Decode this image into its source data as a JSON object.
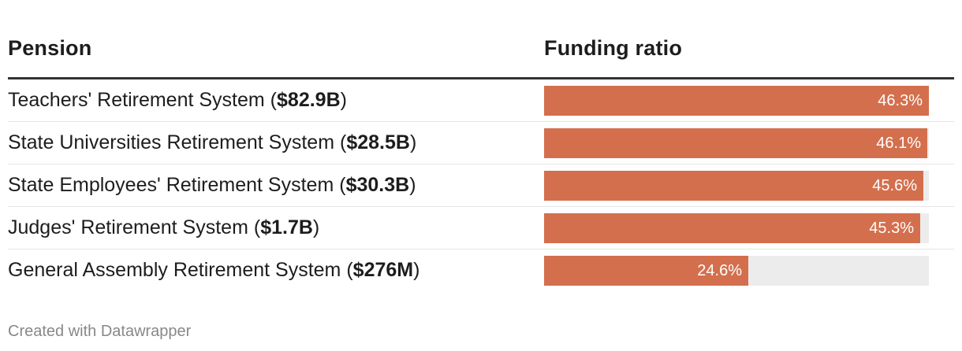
{
  "header": {
    "pension_label": "Pension",
    "ratio_label": "Funding ratio"
  },
  "chart_data": {
    "type": "table",
    "columns": [
      "Pension",
      "Funding ratio"
    ],
    "unit": "%",
    "bar_max": 46.3,
    "rows": [
      {
        "name": "Teachers' Retirement System",
        "amount": "$82.9B",
        "value": 46.3,
        "label": "46.3%"
      },
      {
        "name": "State Universities Retirement System",
        "amount": "$28.5B",
        "value": 46.1,
        "label": "46.1%"
      },
      {
        "name": "State Employees' Retirement System",
        "amount": "$30.3B",
        "value": 45.6,
        "label": "45.6%"
      },
      {
        "name": "Judges' Retirement System",
        "amount": "$1.7B",
        "value": 45.3,
        "label": "45.3%"
      },
      {
        "name": "General Assembly Retirement System",
        "amount": "$276M",
        "value": 24.6,
        "label": "24.6%"
      }
    ]
  },
  "colors": {
    "bar": "#d46f4d",
    "track": "#ececec"
  },
  "footer": {
    "credit": "Created with Datawrapper"
  }
}
